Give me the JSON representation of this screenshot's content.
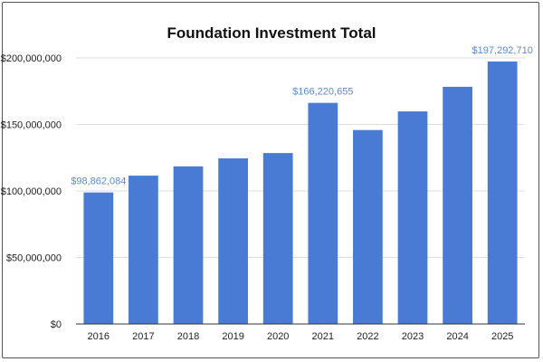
{
  "chart_data": {
    "type": "bar",
    "title": "Foundation Investment Total",
    "xlabel": "",
    "ylabel": "",
    "categories": [
      "2016",
      "2017",
      "2018",
      "2019",
      "2020",
      "2021",
      "2022",
      "2023",
      "2024",
      "2025"
    ],
    "values": [
      98862084,
      111500000,
      118500000,
      124500000,
      128500000,
      166220655,
      145800000,
      159800000,
      178300000,
      197292710
    ],
    "ylim": [
      0,
      200000000
    ],
    "yticks": [
      0,
      50000000,
      100000000,
      150000000,
      200000000
    ],
    "ytick_labels": [
      "$0",
      "$50,000,000",
      "$100,000,000",
      "$150,000,000",
      "$200,000,000"
    ],
    "data_labels": [
      {
        "index": 0,
        "text": "$98,862,084"
      },
      {
        "index": 5,
        "text": "$166,220,655"
      },
      {
        "index": 9,
        "text": "$197,292,710"
      }
    ],
    "bar_color": "#4a7bd4",
    "label_color": "#5b88d6",
    "grid": true,
    "legend": "none"
  }
}
